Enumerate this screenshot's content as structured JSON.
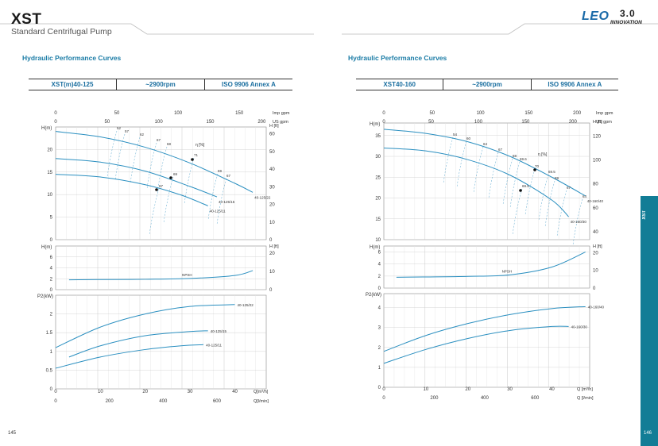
{
  "header": {
    "brand": "XST",
    "subtitle": "Standard Centrifugal Pump",
    "logo_text": "LEO",
    "logo_version": "3.0",
    "logo_tagline": "INNOVATION"
  },
  "side_tab": {
    "label": "XST"
  },
  "page_numbers": {
    "left": "145",
    "right": "146"
  },
  "colors": {
    "curve": "#2a8fc0",
    "accent": "#127d96",
    "title": "#1b7ca6"
  },
  "panels": [
    {
      "title": "Hydraulic Performance Curves",
      "spec": {
        "model": "XST(m)40-125",
        "speed": "~2900rpm",
        "standard": "ISO 9906  Annex A"
      },
      "chart_data": {
        "type": "line",
        "top_axis_imp_gpm": {
          "label": "Imp gpm",
          "ticks": [
            "0",
            "50",
            "100",
            "150"
          ]
        },
        "top_axis_us_gpm": {
          "label": "US gpm",
          "ticks": [
            "0",
            "50",
            "100",
            "150",
            "200"
          ]
        },
        "head": {
          "ylabel": "H(m)",
          "ylim": [
            0,
            25
          ],
          "yticks": [
            "0",
            "5",
            "10",
            "15",
            "20"
          ],
          "ylabel_right": "H [ft]",
          "yticks_right": [
            "0",
            "10",
            "20",
            "30",
            "40",
            "50",
            "60"
          ],
          "efficiency_label": "η [%]",
          "series": [
            {
              "name": "40-125/22",
              "x": [
                0,
                10,
                20,
                30,
                40,
                44
              ],
              "y": [
                24,
                22.8,
                20.5,
                17,
                12.5,
                10.5
              ]
            },
            {
              "name": "40-125/15",
              "x": [
                0,
                10,
                20,
                30,
                36
              ],
              "y": [
                18,
                17.2,
                15.2,
                11.8,
                9.5
              ]
            },
            {
              "name": "40-125/11",
              "x": [
                0,
                10,
                20,
                28,
                34
              ],
              "y": [
                14.5,
                13.9,
                12.2,
                9.9,
                7.5
              ]
            }
          ],
          "efficiency_labels": [
            "52",
            "57",
            "62",
            "67",
            "68",
            "71",
            "69",
            "67",
            "69",
            "67"
          ]
        },
        "npsh": {
          "ylabel": "H(m)",
          "ylim": [
            0,
            8
          ],
          "yticks": [
            "0",
            "2",
            "4",
            "6"
          ],
          "ylabel_right": "H [ft]",
          "yticks_right": [
            "0",
            "10",
            "20"
          ],
          "series": [
            {
              "name": "NPSH",
              "x": [
                3,
                10,
                20,
                30,
                40,
                44
              ],
              "y": [
                1.8,
                1.85,
                1.9,
                2.05,
                2.6,
                3.5
              ]
            }
          ]
        },
        "power": {
          "ylabel": "P2(kW)",
          "ylim": [
            0,
            2.5
          ],
          "yticks": [
            "0",
            "0.5",
            "1",
            "1.5",
            "2"
          ],
          "series": [
            {
              "name": "40-125/22",
              "x": [
                0,
                10,
                20,
                30,
                40
              ],
              "y": [
                1.1,
                1.65,
                2.0,
                2.2,
                2.25
              ]
            },
            {
              "name": "40-125/15",
              "x": [
                3,
                10,
                20,
                30,
                34
              ],
              "y": [
                0.85,
                1.15,
                1.42,
                1.53,
                1.55
              ]
            },
            {
              "name": "40-125/11",
              "x": [
                0,
                10,
                20,
                28,
                33
              ],
              "y": [
                0.55,
                0.85,
                1.05,
                1.15,
                1.18
              ]
            }
          ],
          "x_label_q_m3h": "Q[m³/h]",
          "x_ticks_q_m3h": [
            "0",
            "10",
            "20",
            "30",
            "40"
          ],
          "x_label_q_lmin": "Q[l/min]",
          "x_ticks_q_lmin": [
            "0",
            "200",
            "400",
            "600"
          ]
        }
      }
    },
    {
      "title": "Hydraulic Performance Curves",
      "spec": {
        "model": "XST40-160",
        "speed": "~2900rpm",
        "standard": "ISO 9906  Annex A"
      },
      "chart_data": {
        "type": "line",
        "top_axis_imp_gpm": {
          "label": "Imp gpm",
          "ticks": [
            "0",
            "50",
            "100",
            "150",
            "200"
          ]
        },
        "top_axis_us_gpm": {
          "label": "US gpm",
          "ticks": [
            "0",
            "50",
            "100",
            "150",
            "200"
          ]
        },
        "head": {
          "ylabel": "H(m)",
          "ylim": [
            10,
            38
          ],
          "yticks": [
            "10",
            "15",
            "20",
            "25",
            "30",
            "35"
          ],
          "ylabel_right": "H [ft]",
          "yticks_right": [
            "40",
            "60",
            "80",
            "100",
            "120"
          ],
          "efficiency_label": "η [%]",
          "series": [
            {
              "name": "40-160/40",
              "x": [
                0,
                10,
                20,
                30,
                40,
                48
              ],
              "y": [
                36.5,
                35.5,
                33.5,
                30.0,
                25.0,
                20.5
              ]
            },
            {
              "name": "40-160/30",
              "x": [
                0,
                10,
                20,
                30,
                40,
                44
              ],
              "y": [
                32,
                31.3,
                29.2,
                25.5,
                19.5,
                15.5
              ]
            }
          ],
          "efficiency_labels": [
            "54",
            "60",
            "64",
            "67",
            "68",
            "69.6",
            "70",
            "69.5",
            "69",
            "67",
            "64",
            "69.5"
          ]
        },
        "npsh": {
          "ylabel": "H(m)",
          "ylim": [
            0,
            7
          ],
          "yticks": [
            "0",
            "2",
            "4",
            "6"
          ],
          "ylabel_right": "H [ft]",
          "yticks_right": [
            "0",
            "10",
            "20"
          ],
          "series": [
            {
              "name": "NPSH",
              "x": [
                3,
                10,
                20,
                30,
                40,
                48
              ],
              "y": [
                1.8,
                1.85,
                1.95,
                2.2,
                3.5,
                6.0
              ]
            }
          ]
        },
        "power": {
          "ylabel": "P2(kW)",
          "ylim": [
            0,
            4.7
          ],
          "yticks": [
            "0",
            "1",
            "2",
            "3",
            "4"
          ],
          "series": [
            {
              "name": "40-160/40",
              "x": [
                0,
                10,
                20,
                30,
                40,
                48
              ],
              "y": [
                1.8,
                2.6,
                3.2,
                3.65,
                3.95,
                4.05
              ]
            },
            {
              "name": "40-160/30",
              "x": [
                0,
                10,
                20,
                30,
                40,
                44
              ],
              "y": [
                1.2,
                1.9,
                2.45,
                2.85,
                3.05,
                3.05
              ]
            }
          ],
          "x_label_q_m3h": "Q [m³/h]",
          "x_ticks_q_m3h": [
            "0",
            "10",
            "20",
            "30",
            "40"
          ],
          "x_label_q_lmin": "Q [l/min]",
          "x_ticks_q_lmin": [
            "0",
            "200",
            "400",
            "600"
          ]
        }
      }
    }
  ]
}
